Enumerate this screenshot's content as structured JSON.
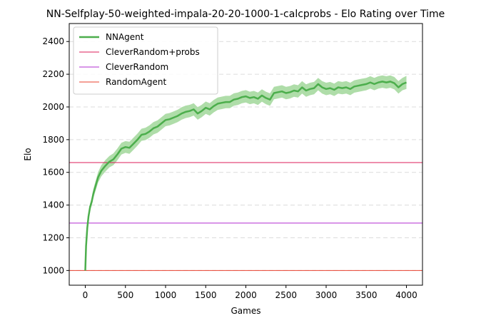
{
  "chart_data": {
    "type": "line",
    "title": "NN-Selfplay-50-weighted-impala-20-20-1000-1-calcprobs - Elo Rating over Time",
    "xlabel": "Games",
    "ylabel": "Elo",
    "xlim": [
      -200,
      4200
    ],
    "ylim": [
      910,
      2510
    ],
    "xticks": [
      0,
      500,
      1000,
      1500,
      2000,
      2500,
      3000,
      3500,
      4000
    ],
    "yticks": [
      1000,
      1200,
      1400,
      1600,
      1800,
      2000,
      2200,
      2400
    ],
    "grid": "horizontal-dashed",
    "legend_position": "top-left",
    "series": [
      {
        "name": "NNAgent",
        "kind": "line-with-band",
        "color": "#4cae4c",
        "band_color": "#a6d9a0",
        "points": [
          [
            0,
            1000
          ],
          [
            10,
            1150
          ],
          [
            25,
            1260
          ],
          [
            40,
            1330
          ],
          [
            60,
            1390
          ],
          [
            80,
            1420
          ],
          [
            100,
            1470
          ],
          [
            130,
            1520
          ],
          [
            160,
            1570
          ],
          [
            200,
            1610
          ],
          [
            250,
            1640
          ],
          [
            300,
            1665
          ],
          [
            350,
            1680
          ],
          [
            400,
            1710
          ],
          [
            450,
            1745
          ],
          [
            500,
            1755
          ],
          [
            550,
            1750
          ],
          [
            600,
            1775
          ],
          [
            650,
            1800
          ],
          [
            700,
            1830
          ],
          [
            750,
            1835
          ],
          [
            800,
            1850
          ],
          [
            850,
            1870
          ],
          [
            900,
            1880
          ],
          [
            950,
            1900
          ],
          [
            1000,
            1920
          ],
          [
            1050,
            1925
          ],
          [
            1100,
            1935
          ],
          [
            1150,
            1945
          ],
          [
            1200,
            1960
          ],
          [
            1250,
            1970
          ],
          [
            1300,
            1975
          ],
          [
            1350,
            1985
          ],
          [
            1400,
            1960
          ],
          [
            1450,
            1975
          ],
          [
            1500,
            1995
          ],
          [
            1550,
            1985
          ],
          [
            1600,
            2005
          ],
          [
            1650,
            2020
          ],
          [
            1700,
            2025
          ],
          [
            1750,
            2030
          ],
          [
            1800,
            2030
          ],
          [
            1850,
            2045
          ],
          [
            1900,
            2050
          ],
          [
            1950,
            2060
          ],
          [
            2000,
            2065
          ],
          [
            2050,
            2055
          ],
          [
            2100,
            2060
          ],
          [
            2150,
            2050
          ],
          [
            2200,
            2070
          ],
          [
            2250,
            2055
          ],
          [
            2300,
            2045
          ],
          [
            2350,
            2085
          ],
          [
            2400,
            2090
          ],
          [
            2450,
            2095
          ],
          [
            2500,
            2085
          ],
          [
            2550,
            2090
          ],
          [
            2600,
            2100
          ],
          [
            2650,
            2095
          ],
          [
            2700,
            2120
          ],
          [
            2750,
            2100
          ],
          [
            2800,
            2110
          ],
          [
            2850,
            2115
          ],
          [
            2900,
            2140
          ],
          [
            2950,
            2120
          ],
          [
            3000,
            2110
          ],
          [
            3050,
            2115
          ],
          [
            3100,
            2105
          ],
          [
            3150,
            2120
          ],
          [
            3200,
            2115
          ],
          [
            3250,
            2120
          ],
          [
            3300,
            2110
          ],
          [
            3350,
            2125
          ],
          [
            3400,
            2130
          ],
          [
            3450,
            2135
          ],
          [
            3500,
            2140
          ],
          [
            3550,
            2150
          ],
          [
            3600,
            2140
          ],
          [
            3650,
            2150
          ],
          [
            3700,
            2155
          ],
          [
            3750,
            2150
          ],
          [
            3800,
            2155
          ],
          [
            3850,
            2145
          ],
          [
            3900,
            2120
          ],
          [
            3950,
            2140
          ],
          [
            4000,
            2150
          ]
        ],
        "band_half_width": [
          0,
          5,
          10,
          15,
          20,
          25,
          28,
          30,
          32,
          34,
          35,
          35,
          36,
          36,
          36,
          36,
          37,
          37,
          37,
          37,
          38,
          38,
          38,
          38,
          38,
          38,
          38,
          38,
          38,
          38,
          38,
          38,
          38,
          38,
          38,
          38,
          38,
          38,
          38,
          38,
          38,
          38,
          38,
          38,
          38,
          38,
          38,
          38,
          38,
          38,
          38,
          38,
          38,
          38,
          38,
          38,
          38,
          38,
          38,
          38,
          38,
          38,
          38,
          38,
          38,
          38,
          38,
          38,
          38,
          38,
          38,
          38,
          38,
          38,
          38,
          38,
          38,
          38,
          38,
          38,
          38,
          38,
          38,
          38,
          38,
          40
        ]
      },
      {
        "name": "CleverRandom+probs",
        "kind": "hline",
        "value": 1660,
        "color": "#dc1c5a"
      },
      {
        "name": "CleverRandom",
        "kind": "hline",
        "value": 1290,
        "color": "#b22cd1"
      },
      {
        "name": "RandomAgent",
        "kind": "hline",
        "value": 1000,
        "color": "#e8402e"
      }
    ]
  }
}
